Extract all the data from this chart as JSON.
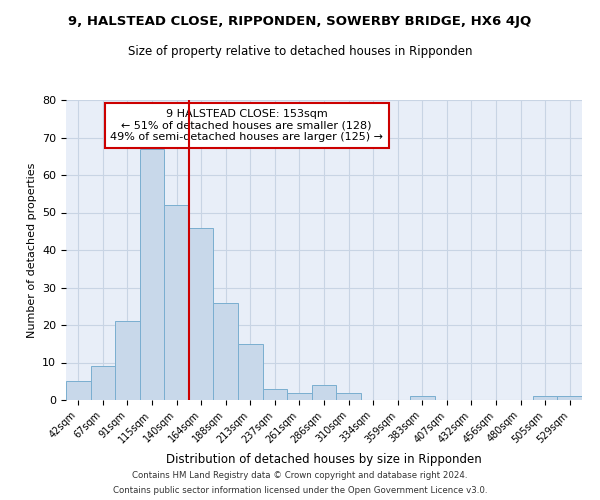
{
  "title": "9, HALSTEAD CLOSE, RIPPONDEN, SOWERBY BRIDGE, HX6 4JQ",
  "subtitle": "Size of property relative to detached houses in Ripponden",
  "xlabel": "Distribution of detached houses by size in Ripponden",
  "ylabel": "Number of detached properties",
  "bar_labels": [
    "42sqm",
    "67sqm",
    "91sqm",
    "115sqm",
    "140sqm",
    "164sqm",
    "188sqm",
    "213sqm",
    "237sqm",
    "261sqm",
    "286sqm",
    "310sqm",
    "334sqm",
    "359sqm",
    "383sqm",
    "407sqm",
    "432sqm",
    "456sqm",
    "480sqm",
    "505sqm",
    "529sqm"
  ],
  "bar_values": [
    5,
    9,
    21,
    67,
    52,
    46,
    26,
    15,
    3,
    2,
    4,
    2,
    0,
    0,
    1,
    0,
    0,
    0,
    0,
    1,
    1
  ],
  "bar_color": "#c8d8ea",
  "bar_edge_color": "#7aaed0",
  "vline_x": 4.5,
  "vline_color": "#cc0000",
  "annotation_text": "9 HALSTEAD CLOSE: 153sqm\n← 51% of detached houses are smaller (128)\n49% of semi-detached houses are larger (125) →",
  "annotation_box_color": "#ffffff",
  "annotation_box_edge": "#cc0000",
  "ylim": [
    0,
    80
  ],
  "yticks": [
    0,
    10,
    20,
    30,
    40,
    50,
    60,
    70,
    80
  ],
  "grid_color": "#c8d4e4",
  "bg_color": "#e8eef8",
  "footer_line1": "Contains HM Land Registry data © Crown copyright and database right 2024.",
  "footer_line2": "Contains public sector information licensed under the Open Government Licence v3.0."
}
